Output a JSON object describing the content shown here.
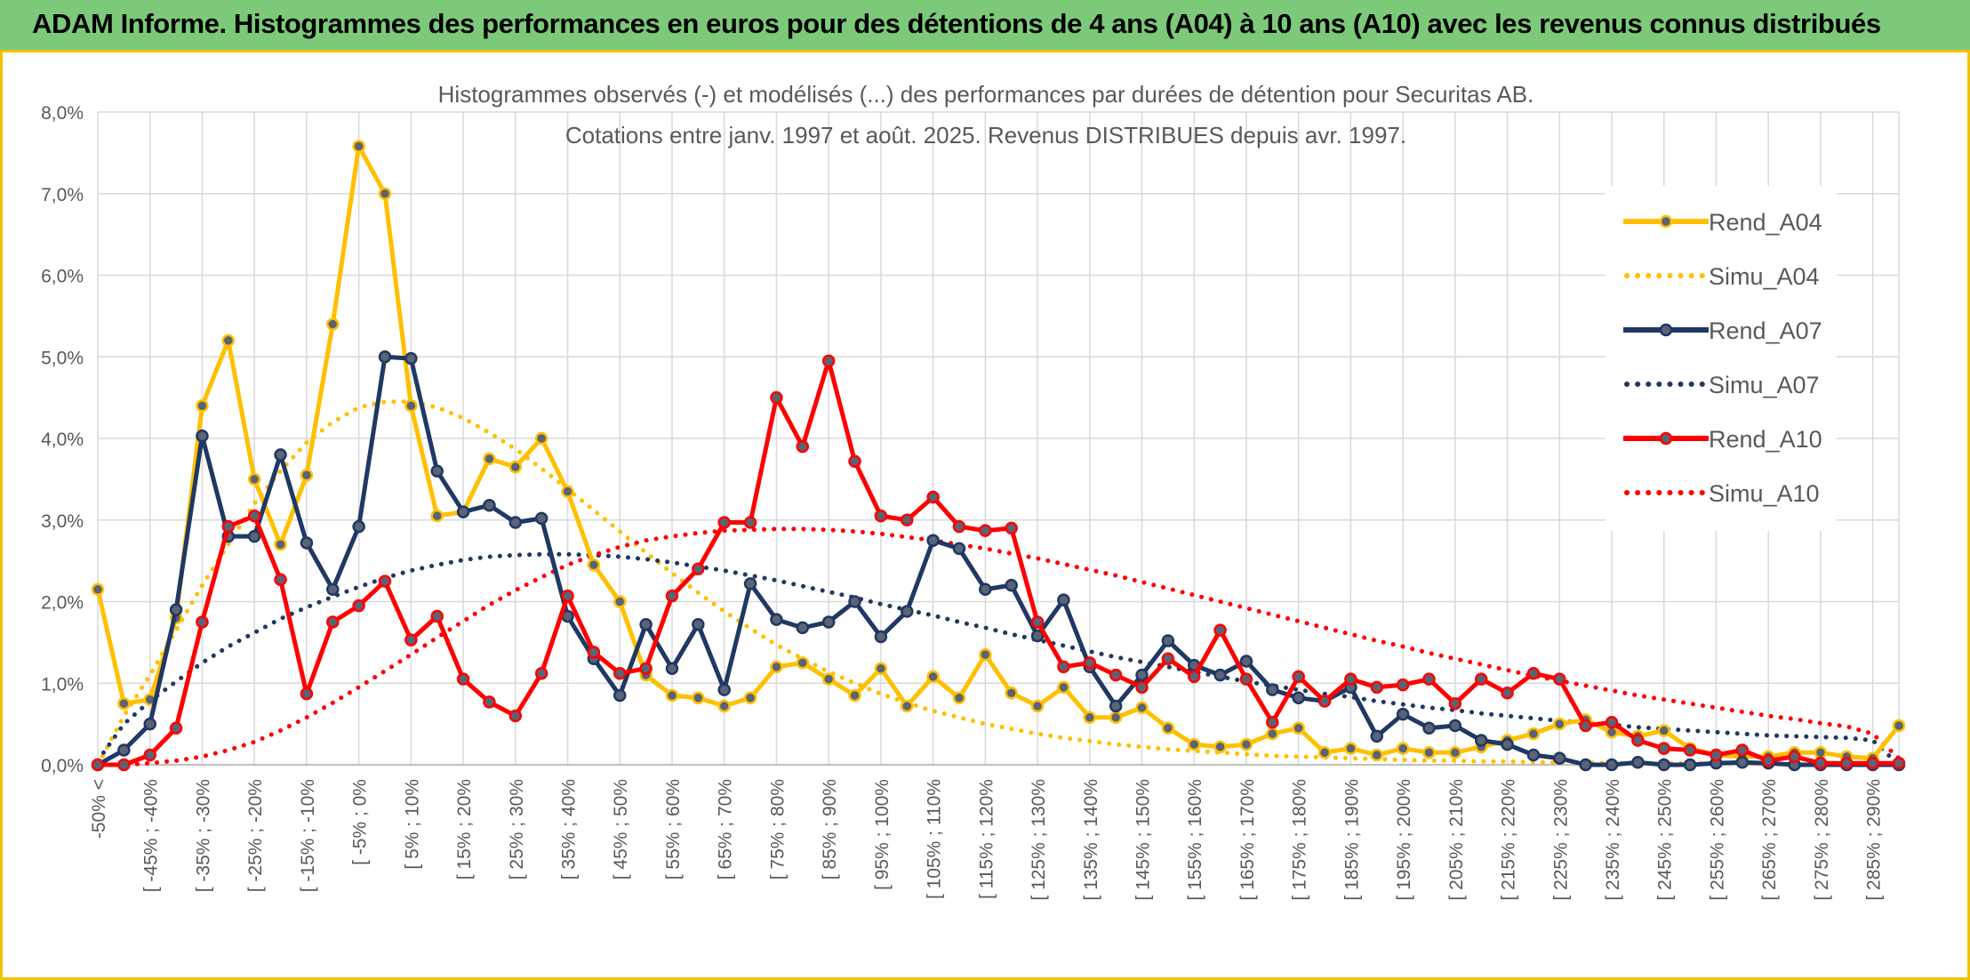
{
  "header": {
    "title": "ADAM Informe. Histogrammes des performances en euros pour des détentions de 4 ans (A04) à 10 ans (A10) avec les revenus connus distribués"
  },
  "colors": {
    "banner_bg": "#7cc97a",
    "frame": "#f2c200",
    "A04": "#ffc000",
    "A07": "#1f3864",
    "A10": "#ff0000",
    "grid": "#d9d9d9",
    "text": "#595959"
  },
  "chart_data": {
    "type": "line",
    "title": "Histogrammes observés (-) et modélisés (...) des performances par durées de détention pour Securitas AB.",
    "subtitle": "Cotations entre janv. 1997 et août. 2025. Revenus DISTRIBUES depuis avr. 1997.",
    "ylim": [
      0,
      8
    ],
    "y_ticks": [
      "0,0%",
      "1,0%",
      "2,0%",
      "3,0%",
      "4,0%",
      "5,0%",
      "6,0%",
      "7,0%",
      "8,0%"
    ],
    "y_unit": "%",
    "grid": true,
    "legend_position": "right",
    "x_labels": [
      "-50% <",
      "[ -45% ; -40%",
      "[ -35% ; -30%",
      "[ -25% ; -20%",
      "[ -15% ; -10%",
      "[ -5% ; 0%",
      "[ 5% ; 10%",
      "[ 15% ; 20%",
      "[ 25% ; 30%",
      "[ 35% ; 40%",
      "[ 45% ; 50%",
      "[ 55% ; 60%",
      "[ 65% ; 70%",
      "[ 75% ; 80%",
      "[ 85% ; 90%",
      "[ 95% ; 100%",
      "[ 105% ; 110%",
      "[ 115% ; 120%",
      "[ 125% ; 130%",
      "[ 135% ; 140%",
      "[ 145% ; 150%",
      "[ 155% ; 160%",
      "[ 165% ; 170%",
      "[ 175% ; 180%",
      "[ 185% ; 190%",
      "[ 195% ; 200%",
      "[ 205% ; 210%",
      "[ 215% ; 220%",
      "[ 225% ; 230%",
      "[ 235% ; 240%",
      "[ 245% ; 250%",
      "[ 255% ; 260%",
      "[ 265% ; 270%",
      "[ 275% ; 280%",
      "[ 285% ; 290%"
    ],
    "x_points": 70,
    "series": [
      {
        "name": "Rend_A04",
        "style": "solid",
        "color": "#ffc000",
        "values": [
          2.15,
          0.75,
          0.8,
          1.8,
          4.4,
          5.2,
          3.5,
          2.7,
          3.55,
          5.4,
          7.58,
          7.0,
          4.4,
          3.05,
          3.1,
          3.75,
          3.65,
          4.0,
          3.35,
          2.45,
          2.0,
          1.1,
          0.85,
          0.82,
          0.72,
          0.82,
          1.2,
          1.25,
          1.05,
          0.85,
          1.18,
          0.72,
          1.08,
          0.82,
          1.35,
          0.88,
          0.72,
          0.95,
          0.58,
          0.58,
          0.7,
          0.45,
          0.25,
          0.22,
          0.25,
          0.38,
          0.45,
          0.15,
          0.2,
          0.12,
          0.2,
          0.15,
          0.15,
          0.22,
          0.3,
          0.38,
          0.5,
          0.55,
          0.4,
          0.35,
          0.42,
          0.2,
          0.12,
          0.1,
          0.1,
          0.15,
          0.15,
          0.1,
          0.08,
          0.48
        ]
      },
      {
        "name": "Simu_A04",
        "style": "dotted",
        "color": "#ffc000",
        "values": [
          0.0,
          0.6,
          1.1,
          1.65,
          2.2,
          2.7,
          3.2,
          3.6,
          3.95,
          4.2,
          4.38,
          4.45,
          4.45,
          4.38,
          4.25,
          4.07,
          3.87,
          3.63,
          3.38,
          3.12,
          2.86,
          2.6,
          2.35,
          2.11,
          1.88,
          1.67,
          1.47,
          1.3,
          1.14,
          1.0,
          0.87,
          0.76,
          0.66,
          0.58,
          0.5,
          0.44,
          0.38,
          0.33,
          0.29,
          0.25,
          0.22,
          0.19,
          0.17,
          0.15,
          0.13,
          0.11,
          0.1,
          0.09,
          0.08,
          0.07,
          0.06,
          0.05,
          0.05,
          0.04,
          0.04,
          0.03,
          0.03,
          0.03,
          0.02,
          0.02,
          0.02,
          0.02,
          0.02,
          0.02,
          0.01,
          0.01,
          0.01,
          0.01,
          0.01,
          0.01
        ]
      },
      {
        "name": "Rend_A07",
        "style": "solid",
        "color": "#1f3864",
        "values": [
          0.0,
          0.18,
          0.5,
          1.9,
          4.03,
          2.8,
          2.8,
          3.8,
          2.72,
          2.15,
          2.92,
          5.0,
          4.98,
          3.6,
          3.1,
          3.18,
          2.97,
          3.02,
          1.82,
          1.3,
          0.85,
          1.72,
          1.18,
          1.72,
          0.92,
          2.22,
          1.78,
          1.68,
          1.75,
          2.0,
          1.57,
          1.88,
          2.75,
          2.65,
          2.15,
          2.2,
          1.58,
          2.02,
          1.2,
          0.72,
          1.1,
          1.52,
          1.22,
          1.1,
          1.27,
          0.92,
          0.82,
          0.78,
          0.95,
          0.35,
          0.62,
          0.45,
          0.48,
          0.3,
          0.25,
          0.12,
          0.08,
          0.0,
          0.0,
          0.03,
          0.0,
          0.0,
          0.02,
          0.03,
          0.02,
          0.0,
          0.0,
          0.0,
          0.0,
          0.0
        ]
      },
      {
        "name": "Simu_A07",
        "style": "dotted",
        "color": "#1f3864",
        "values": [
          0.05,
          0.5,
          0.78,
          1.02,
          1.25,
          1.45,
          1.62,
          1.79,
          1.93,
          2.06,
          2.18,
          2.29,
          2.38,
          2.45,
          2.51,
          2.55,
          2.57,
          2.58,
          2.58,
          2.57,
          2.55,
          2.52,
          2.48,
          2.43,
          2.38,
          2.32,
          2.26,
          2.19,
          2.12,
          2.05,
          1.97,
          1.9,
          1.83,
          1.75,
          1.68,
          1.6,
          1.53,
          1.46,
          1.39,
          1.32,
          1.26,
          1.2,
          1.14,
          1.08,
          1.02,
          0.97,
          0.92,
          0.87,
          0.83,
          0.78,
          0.74,
          0.7,
          0.67,
          0.63,
          0.6,
          0.57,
          0.54,
          0.51,
          0.49,
          0.46,
          0.44,
          0.42,
          0.4,
          0.38,
          0.36,
          0.35,
          0.34,
          0.33,
          0.3,
          0.0
        ]
      },
      {
        "name": "Rend_A10",
        "style": "solid",
        "color": "#ff0000",
        "values": [
          0.0,
          0.0,
          0.12,
          0.45,
          1.75,
          2.92,
          3.05,
          2.27,
          0.87,
          1.75,
          1.95,
          2.25,
          1.53,
          1.82,
          1.05,
          0.77,
          0.6,
          1.12,
          2.07,
          1.38,
          1.12,
          1.18,
          2.07,
          2.4,
          2.97,
          2.97,
          4.5,
          3.9,
          4.95,
          3.72,
          3.05,
          3.0,
          3.28,
          2.92,
          2.87,
          2.9,
          1.75,
          1.2,
          1.25,
          1.1,
          0.95,
          1.3,
          1.08,
          1.65,
          1.05,
          0.52,
          1.08,
          0.78,
          1.05,
          0.95,
          0.98,
          1.05,
          0.75,
          1.05,
          0.88,
          1.12,
          1.05,
          0.48,
          0.52,
          0.3,
          0.2,
          0.18,
          0.12,
          0.18,
          0.05,
          0.1,
          0.02,
          0.02,
          0.02,
          0.02
        ]
      },
      {
        "name": "Simu_A10",
        "style": "dotted",
        "color": "#ff0000",
        "values": [
          0.0,
          0.0,
          0.02,
          0.05,
          0.1,
          0.18,
          0.28,
          0.42,
          0.58,
          0.76,
          0.95,
          1.15,
          1.35,
          1.56,
          1.76,
          1.96,
          2.14,
          2.3,
          2.45,
          2.57,
          2.67,
          2.75,
          2.8,
          2.84,
          2.87,
          2.88,
          2.89,
          2.89,
          2.88,
          2.86,
          2.83,
          2.79,
          2.75,
          2.7,
          2.65,
          2.59,
          2.53,
          2.46,
          2.39,
          2.32,
          2.24,
          2.16,
          2.08,
          2.0,
          1.92,
          1.84,
          1.76,
          1.68,
          1.6,
          1.52,
          1.45,
          1.37,
          1.3,
          1.23,
          1.16,
          1.09,
          1.03,
          0.97,
          0.91,
          0.85,
          0.8,
          0.75,
          0.7,
          0.65,
          0.6,
          0.56,
          0.51,
          0.47,
          0.38,
          0.08
        ]
      }
    ]
  }
}
